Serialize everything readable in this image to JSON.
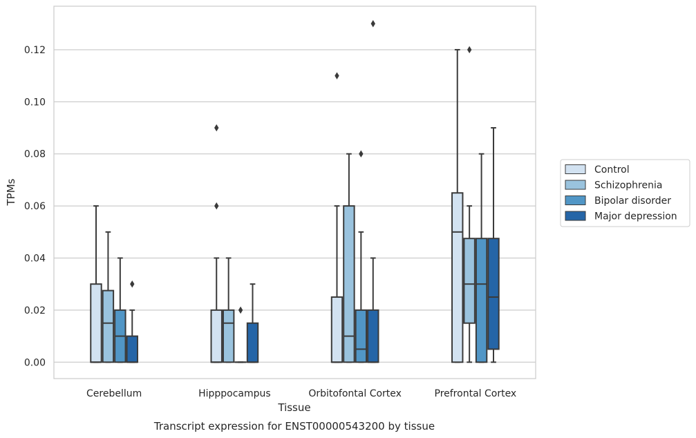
{
  "chart_data": {
    "type": "box",
    "title": "Transcript expression for ENST00000543200 by tissue",
    "xlabel": "Tissue",
    "ylabel": "TPMs",
    "ylim": [
      -0.0063,
      0.1367
    ],
    "yticks": [
      "0.00",
      "0.02",
      "0.04",
      "0.06",
      "0.08",
      "0.10",
      "0.12"
    ],
    "grid": true,
    "legend_position": "right",
    "categories": [
      "Cerebellum",
      "Hipppocampus",
      "Orbitofontal Cortex",
      "Prefrontal Cortex"
    ],
    "series": [
      {
        "name": "Control",
        "color": "#d2e2f1",
        "boxes": [
          {
            "whislo": 0.0,
            "q1": 0.0,
            "med": 0.0,
            "q3": 0.03,
            "whishi": 0.06,
            "fliers": []
          },
          {
            "whislo": 0.0,
            "q1": 0.0,
            "med": 0.0,
            "q3": 0.02,
            "whishi": 0.04,
            "fliers": [
              0.06,
              0.09
            ]
          },
          {
            "whislo": 0.0,
            "q1": 0.0,
            "med": 0.0,
            "q3": 0.025,
            "whishi": 0.06,
            "fliers": [
              0.11
            ]
          },
          {
            "whislo": 0.0,
            "q1": 0.0,
            "med": 0.05,
            "q3": 0.065,
            "whishi": 0.12,
            "fliers": []
          }
        ]
      },
      {
        "name": "Schizophrenia",
        "color": "#9ac3de",
        "boxes": [
          {
            "whislo": 0.0,
            "q1": 0.0,
            "med": 0.015,
            "q3": 0.0275,
            "whishi": 0.05,
            "fliers": []
          },
          {
            "whislo": 0.0,
            "q1": 0.0,
            "med": 0.015,
            "q3": 0.02,
            "whishi": 0.04,
            "fliers": []
          },
          {
            "whislo": 0.0,
            "q1": 0.0,
            "med": 0.01,
            "q3": 0.06,
            "whishi": 0.08,
            "fliers": []
          },
          {
            "whislo": 0.0,
            "q1": 0.015,
            "med": 0.03,
            "q3": 0.0475,
            "whishi": 0.06,
            "fliers": [
              0.12
            ]
          }
        ]
      },
      {
        "name": "Bipolar disorder",
        "color": "#5196c6",
        "boxes": [
          {
            "whislo": 0.0,
            "q1": 0.0,
            "med": 0.01,
            "q3": 0.02,
            "whishi": 0.04,
            "fliers": []
          },
          {
            "whislo": 0.0,
            "q1": 0.0,
            "med": 0.0,
            "q3": 0.0,
            "whishi": 0.0,
            "fliers": [
              0.02
            ]
          },
          {
            "whislo": 0.0,
            "q1": 0.0,
            "med": 0.005,
            "q3": 0.02,
            "whishi": 0.05,
            "fliers": [
              0.08
            ]
          },
          {
            "whislo": 0.0,
            "q1": 0.0,
            "med": 0.03,
            "q3": 0.0475,
            "whishi": 0.08,
            "fliers": []
          }
        ]
      },
      {
        "name": "Major depression",
        "color": "#2565a7",
        "boxes": [
          {
            "whislo": 0.0,
            "q1": 0.0,
            "med": 0.0,
            "q3": 0.01,
            "whishi": 0.02,
            "fliers": [
              0.03
            ]
          },
          {
            "whislo": 0.0,
            "q1": 0.0,
            "med": 0.0,
            "q3": 0.015,
            "whishi": 0.03,
            "fliers": []
          },
          {
            "whislo": 0.0,
            "q1": 0.0,
            "med": 0.0,
            "q3": 0.02,
            "whishi": 0.04,
            "fliers": [
              0.13
            ]
          },
          {
            "whislo": 0.0,
            "q1": 0.005,
            "med": 0.025,
            "q3": 0.0475,
            "whishi": 0.09,
            "fliers": []
          }
        ]
      }
    ]
  }
}
